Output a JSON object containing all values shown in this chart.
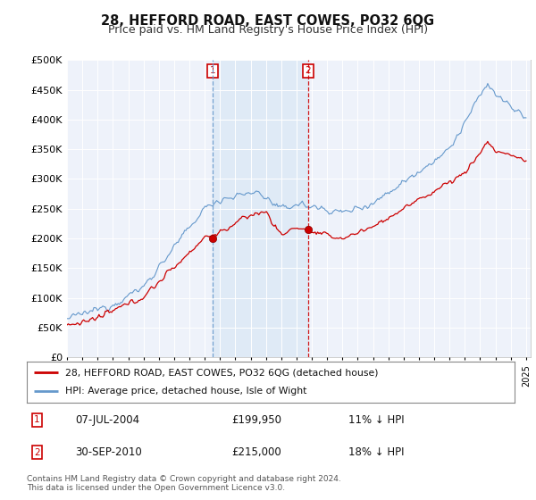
{
  "title": "28, HEFFORD ROAD, EAST COWES, PO32 6QG",
  "subtitle": "Price paid vs. HM Land Registry's House Price Index (HPI)",
  "ylim": [
    0,
    500000
  ],
  "yticks": [
    0,
    50000,
    100000,
    150000,
    200000,
    250000,
    300000,
    350000,
    400000,
    450000,
    500000
  ],
  "xlim_start": 1995.0,
  "xlim_end": 2025.3,
  "background_color": "#eef2fa",
  "hpi_color": "#6699cc",
  "price_color": "#cc0000",
  "shade_color": "#dce8f5",
  "sale1_year": 2004.52,
  "sale1_price": 199950,
  "sale2_year": 2010.75,
  "sale2_price": 215000,
  "sale1_label": "1",
  "sale2_label": "2",
  "legend_line1": "28, HEFFORD ROAD, EAST COWES, PO32 6QG (detached house)",
  "legend_line2": "HPI: Average price, detached house, Isle of Wight",
  "annotation1_date": "07-JUL-2004",
  "annotation1_price": "£199,950",
  "annotation1_hpi": "11% ↓ HPI",
  "annotation2_date": "30-SEP-2010",
  "annotation2_price": "£215,000",
  "annotation2_hpi": "18% ↓ HPI",
  "footer": "Contains HM Land Registry data © Crown copyright and database right 2024.\nThis data is licensed under the Open Government Licence v3.0.",
  "title_fontsize": 10.5,
  "subtitle_fontsize": 9.0
}
